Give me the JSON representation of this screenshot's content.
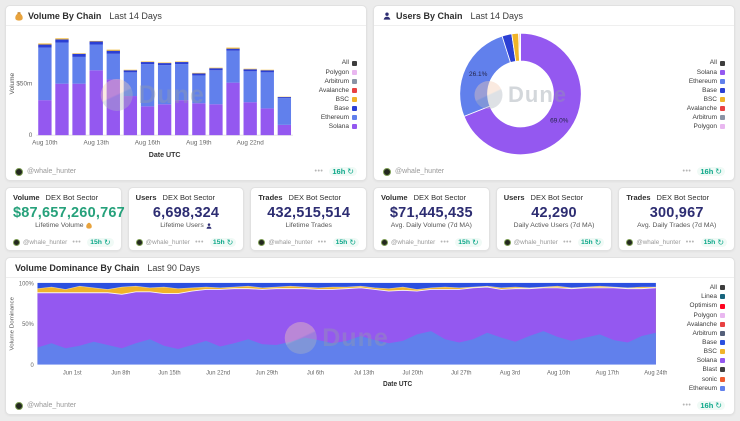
{
  "attribution": {
    "handle": "@whale_hunter"
  },
  "watermark": {
    "text": "Dune"
  },
  "icons": {
    "refresh_glyph": "↻",
    "menu_glyph": "•••"
  },
  "colors": {
    "solana": "#9458f0",
    "ethereum": "#6180ec",
    "base": "#2b3fd4",
    "base_area": "#2b50e0",
    "bsc": "#f0b429",
    "avalanche": "#e84142",
    "polygon": "#e9b7f0",
    "arbitrum": "#8a94a6",
    "all": "#3d3d3d",
    "green_value": "#26a17b",
    "navy_value": "#2d2d72",
    "refresh_teal": "#0ca789"
  },
  "panels": {
    "volume_by_chain": {
      "title": "Volume By Chain",
      "period": "Last 14 Days",
      "refresh": "16h",
      "icon": "money-bag"
    },
    "users_by_chain": {
      "title": "Users By Chain",
      "period": "Last 14 Days",
      "refresh": "16h",
      "icon": "user"
    },
    "volume_dominance": {
      "title": "Volume Dominance By Chain",
      "period": "Last 90 Days",
      "refresh": "16h"
    }
  },
  "cards": [
    {
      "metric": "Volume",
      "scope": "DEX Bot Sector",
      "value": "$87,657,260,767",
      "subtitle": "Lifetime Volume",
      "subtitle_icon": "money-bag",
      "value_color": "#26a17b",
      "refresh": "15h"
    },
    {
      "metric": "Users",
      "scope": "DEX Bot Sector",
      "value": "6,698,324",
      "subtitle": "Lifetime Users",
      "subtitle_icon": "user",
      "value_color": "#2d2d72",
      "refresh": "15h"
    },
    {
      "metric": "Trades",
      "scope": "DEX Bot Sector",
      "value": "432,515,514",
      "subtitle": "Lifetime Trades",
      "value_color": "#2d2d72",
      "refresh": "15h"
    },
    {
      "metric": "Volume",
      "scope": "DEX Bot Sector",
      "value": "$71,445,435",
      "subtitle": "Avg. Daily Volume (7d MA)",
      "value_color": "#2d2d72",
      "refresh": "15h"
    },
    {
      "metric": "Users",
      "scope": "DEX Bot Sector",
      "value": "42,290",
      "subtitle": "Daily Active Users (7d MA)",
      "value_color": "#2d2d72",
      "refresh": "15h"
    },
    {
      "metric": "Trades",
      "scope": "DEX Bot Sector",
      "value": "300,967",
      "subtitle": "Avg. Daily Trades (7d MA)",
      "value_color": "#2d2d72",
      "refresh": "15h"
    }
  ],
  "chart_data": [
    {
      "type": "bar",
      "title": "Volume By Chain",
      "period": "Last 14 Days",
      "stacked": true,
      "bar_count": 15,
      "xlabel": "Date UTC",
      "ylabel": "Volume",
      "ylim_musd": [
        0,
        100
      ],
      "ytick_labels": [
        "$50m",
        "0"
      ],
      "x_tick_labels": [
        "Aug 10th",
        "Aug 13th",
        "Aug 16th",
        "Aug 19th",
        "Aug 22nd"
      ],
      "x_tick_bar_indexes": [
        0,
        3,
        6,
        9,
        12
      ],
      "series": [
        {
          "name": "Solana",
          "color": "#9458f0",
          "values_musd": [
            34,
            50,
            50,
            63,
            54,
            38,
            28,
            30,
            34,
            31,
            30,
            51,
            32,
            26,
            10
          ]
        },
        {
          "name": "Ethereum",
          "color": "#6180ec",
          "values_musd": [
            51,
            40,
            26,
            25,
            25,
            23,
            41,
            38,
            35,
            27,
            33,
            31,
            30,
            35,
            26
          ]
        },
        {
          "name": "Base",
          "color": "#2b3fd4",
          "values_musd": [
            3,
            3,
            3,
            3,
            3,
            2,
            2,
            2,
            2,
            2,
            2,
            2,
            2,
            2,
            1
          ]
        },
        {
          "name": "BSC",
          "color": "#f0b429",
          "values_musd": [
            1,
            1,
            0.5,
            0.5,
            1,
            0.5,
            0.5,
            0.5,
            0.5,
            0.5,
            0.5,
            1,
            0.5,
            0.5,
            0.3
          ]
        }
      ],
      "legend": [
        {
          "label": "All",
          "color": "#3d3d3d"
        },
        {
          "label": "Polygon",
          "color": "#e9b7f0"
        },
        {
          "label": "Arbitrum",
          "color": "#8a94a6"
        },
        {
          "label": "Avalanche",
          "color": "#e84142"
        },
        {
          "label": "BSC",
          "color": "#f0b429"
        },
        {
          "label": "Base",
          "color": "#2b3fd4"
        },
        {
          "label": "Ethereum",
          "color": "#6180ec"
        },
        {
          "label": "Solana",
          "color": "#9458f0"
        }
      ]
    },
    {
      "type": "pie",
      "title": "Users By Chain",
      "period": "Last 14 Days",
      "donut": true,
      "slices": [
        {
          "label": "Solana",
          "pct": 69.0,
          "color": "#9458f0",
          "data_label": "69.0%"
        },
        {
          "label": "Ethereum",
          "pct": 26.1,
          "color": "#6180ec",
          "data_label": "26.1%"
        },
        {
          "label": "Base",
          "pct": 2.6,
          "color": "#2b3fd4"
        },
        {
          "label": "BSC",
          "pct": 1.8,
          "color": "#f0b429"
        },
        {
          "label": "Avalanche",
          "pct": 0.3,
          "color": "#e84142"
        },
        {
          "label": "Arbitrum",
          "pct": 0.1,
          "color": "#8a94a6"
        },
        {
          "label": "Polygon",
          "pct": 0.1,
          "color": "#e9b7f0"
        }
      ],
      "legend": [
        {
          "label": "All",
          "color": "#3d3d3d"
        },
        {
          "label": "Solana",
          "color": "#9458f0"
        },
        {
          "label": "Ethereum",
          "color": "#6180ec"
        },
        {
          "label": "Base",
          "color": "#2b3fd4"
        },
        {
          "label": "BSC",
          "color": "#f0b429"
        },
        {
          "label": "Avalanche",
          "color": "#e84142"
        },
        {
          "label": "Arbitrum",
          "color": "#8a94a6"
        },
        {
          "label": "Polygon",
          "color": "#e9b7f0"
        }
      ]
    },
    {
      "type": "area",
      "title": "Volume Dominance By Chain",
      "period": "Last 90 Days",
      "stacked_pct": true,
      "xlabel": "Date UTC",
      "ylabel": "Volume Dominance",
      "ytick_labels": [
        "100%",
        "50%",
        "0"
      ],
      "x_tick_labels": [
        "Jun 1st",
        "Jun 8th",
        "Jun 15th",
        "Jun 22nd",
        "Jun 29th",
        "Jul 6th",
        "Jul 13th",
        "Jul 20th",
        "Jul 27th",
        "Aug 3rd",
        "Aug 10th",
        "Aug 17th",
        "Aug 24th"
      ],
      "x_tick_day_index": [
        5,
        12,
        19,
        26,
        33,
        40,
        47,
        54,
        61,
        68,
        75,
        82,
        89
      ],
      "days_span": 90,
      "series_bottom_to_top": [
        {
          "name": "Ethereum",
          "color": "#6180ec",
          "values_pct": [
            21,
            26,
            20,
            23,
            28,
            24,
            20,
            26,
            31,
            23,
            19,
            24,
            29,
            22,
            26,
            31,
            25,
            24,
            28,
            33,
            30,
            26,
            29,
            35,
            30,
            26,
            29,
            37,
            41,
            31,
            27,
            31,
            39,
            33,
            28,
            35,
            41,
            34,
            29,
            33,
            37,
            30,
            27,
            35,
            39
          ]
        },
        {
          "name": "Solana",
          "color": "#9458f0",
          "values_pct": [
            67,
            62,
            68,
            65,
            60,
            64,
            66,
            63,
            58,
            64,
            68,
            66,
            63,
            70,
            67,
            62,
            67,
            69,
            65,
            60,
            62,
            66,
            64,
            59,
            62,
            64,
            62,
            53,
            51,
            61,
            65,
            63,
            56,
            59,
            65,
            58,
            53,
            60,
            64,
            61,
            57,
            64,
            66,
            58,
            55
          ]
        },
        {
          "name": "BSC",
          "color": "#f0b429",
          "values_pct": [
            5,
            7,
            4,
            8,
            6,
            4,
            9,
            7,
            5,
            8,
            6,
            4,
            3,
            2,
            2,
            3,
            2,
            2,
            3,
            2,
            2,
            3,
            2,
            2,
            2,
            3,
            4,
            2,
            2,
            3,
            2,
            1,
            1,
            2,
            2,
            1,
            1,
            2,
            1,
            1,
            2,
            1,
            1,
            2,
            1
          ]
        },
        {
          "name": "Base",
          "color": "#2b50e0",
          "values_pct": [
            7,
            5,
            8,
            4,
            6,
            8,
            5,
            4,
            6,
            5,
            7,
            6,
            5,
            6,
            5,
            4,
            6,
            5,
            4,
            5,
            6,
            5,
            5,
            4,
            6,
            7,
            5,
            8,
            6,
            5,
            6,
            5,
            4,
            6,
            5,
            6,
            5,
            4,
            6,
            5,
            4,
            5,
            6,
            5,
            5
          ]
        }
      ],
      "legend": [
        {
          "label": "All",
          "color": "#3d3d3d"
        },
        {
          "label": "Linea",
          "color": "#17657d"
        },
        {
          "label": "Optimism",
          "color": "#ff0420"
        },
        {
          "label": "Polygon",
          "color": "#e9b7f0"
        },
        {
          "label": "Avalanche",
          "color": "#e84142"
        },
        {
          "label": "Arbitrum",
          "color": "#55607a"
        },
        {
          "label": "Base",
          "color": "#2b50e0"
        },
        {
          "label": "BSC",
          "color": "#f0b429"
        },
        {
          "label": "Solana",
          "color": "#9458f0"
        },
        {
          "label": "Blast",
          "color": "#404040"
        },
        {
          "label": "sonic",
          "color": "#ef5b2f"
        },
        {
          "label": "Ethereum",
          "color": "#6180ec"
        }
      ]
    }
  ]
}
